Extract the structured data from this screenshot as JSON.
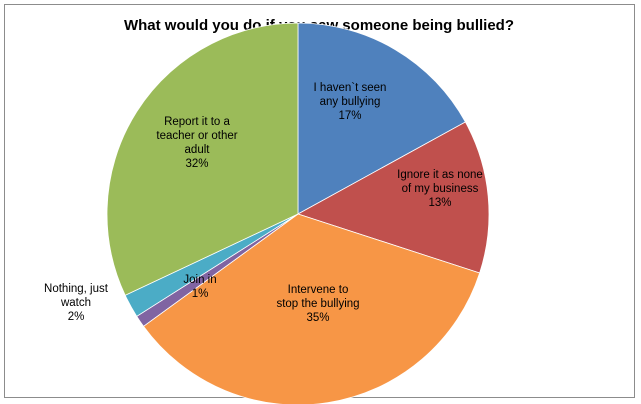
{
  "chart_data": {
    "type": "pie",
    "title": "What would you do if you saw someone being bullied?",
    "start_angle_deg": 90,
    "direction": "clockwise",
    "slices": [
      {
        "label_lines": [
          "I haven`t seen",
          "any bullying",
          "17%"
        ],
        "value": 17,
        "color": "#4f81bd",
        "label_placement": "inside"
      },
      {
        "label_lines": [
          "Ignore it as none",
          "of my business",
          "13%"
        ],
        "value": 13,
        "color": "#c0504d",
        "label_placement": "inside"
      },
      {
        "label_lines": [
          "Intervene to",
          "stop the bullying",
          "35%"
        ],
        "value": 35,
        "color": "#f79646",
        "label_placement": "inside"
      },
      {
        "label_lines": [
          "Join in",
          "1%"
        ],
        "value": 1,
        "color": "#8064a2",
        "label_placement": "inside"
      },
      {
        "label_lines": [
          "Nothing, just",
          "watch",
          "2%"
        ],
        "value": 2,
        "color": "#4bacc6",
        "label_placement": "outside"
      },
      {
        "label_lines": [
          "Report it to a",
          "teacher or other",
          "adult",
          "32%"
        ],
        "value": 32,
        "color": "#9bbb59",
        "label_placement": "inside"
      }
    ],
    "legend": "none"
  }
}
